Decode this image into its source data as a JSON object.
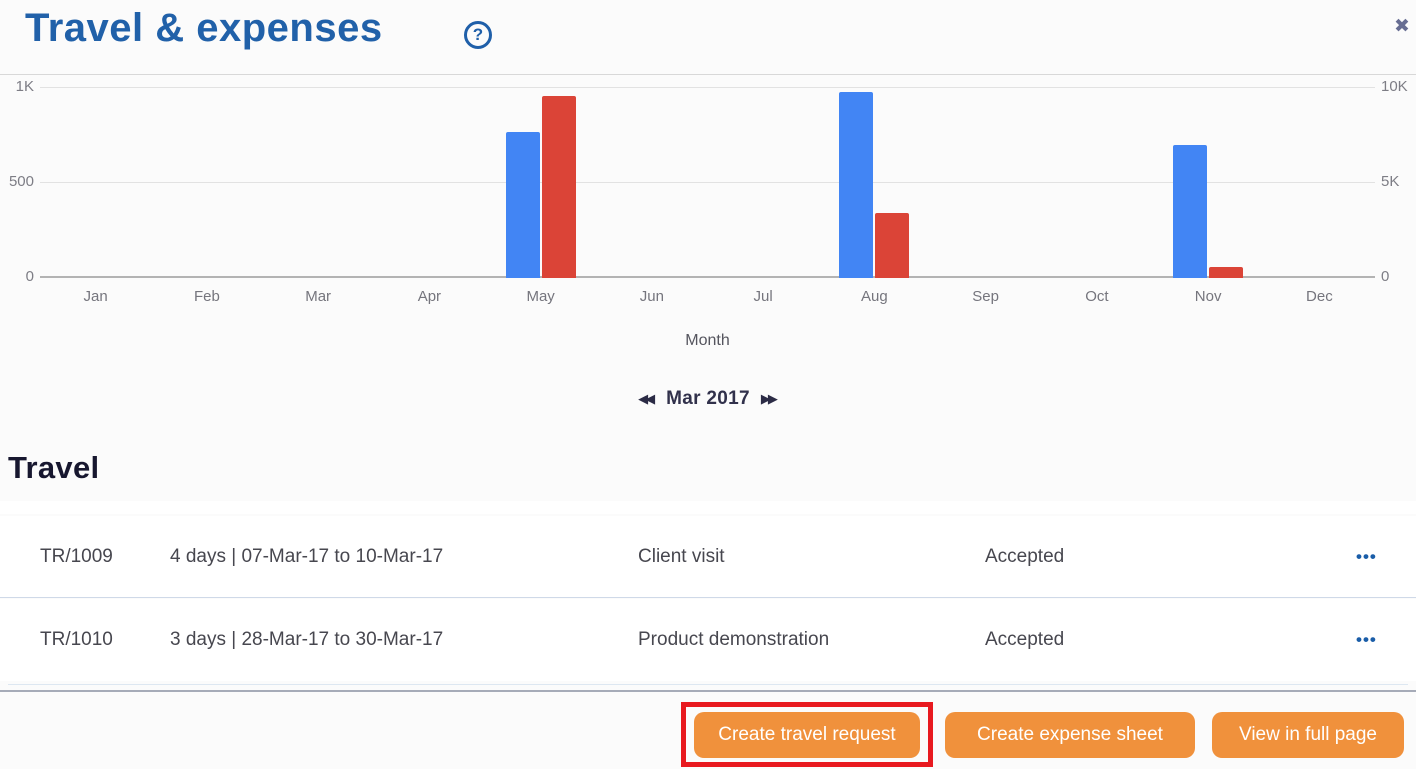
{
  "header": {
    "title": "Travel & expenses",
    "help_icon": "?",
    "close_icon": "✖",
    "title_color": "#2161a9"
  },
  "chart_data": {
    "type": "bar",
    "title": "",
    "xlabel": "Month",
    "categories": [
      "Jan",
      "Feb",
      "Mar",
      "Apr",
      "May",
      "Jun",
      "Jul",
      "Aug",
      "Sep",
      "Oct",
      "Nov",
      "Dec"
    ],
    "series": [
      {
        "name": "blue",
        "axis": "left",
        "color": "#4285F4",
        "values": [
          0,
          0,
          0,
          0,
          770,
          0,
          0,
          980,
          0,
          0,
          700,
          0
        ]
      },
      {
        "name": "red",
        "axis": "right",
        "color": "#DB4437",
        "values": [
          0,
          0,
          0,
          0,
          9600,
          0,
          0,
          3400,
          0,
          0,
          600,
          0
        ]
      }
    ],
    "left_axis": {
      "ticks": [
        "0",
        "500",
        "1K"
      ],
      "max": 1000
    },
    "right_axis": {
      "ticks": [
        "0",
        "5K",
        "10K"
      ],
      "max": 10000
    },
    "grid": true,
    "legend": "none"
  },
  "period_nav": {
    "prev_icon": "◀◀",
    "label": "Mar 2017",
    "next_icon": "▶▶"
  },
  "travel_section": {
    "heading": "Travel",
    "rows": [
      {
        "ref": "TR/1009",
        "duration": "4 days | 07-Mar-17 to 10-Mar-17",
        "purpose": "Client visit",
        "status": "Accepted",
        "menu": "•••"
      },
      {
        "ref": "TR/1010",
        "duration": "3 days | 28-Mar-17 to 30-Mar-17",
        "purpose": "Product demonstration",
        "status": "Accepted",
        "menu": "•••"
      }
    ]
  },
  "footer": {
    "buttons": [
      {
        "label": "Create travel request",
        "highlighted": true
      },
      {
        "label": "Create expense sheet",
        "highlighted": false
      },
      {
        "label": "View in full page",
        "highlighted": false
      }
    ],
    "accent_color": "#f0913c",
    "highlight_color": "#e8191f"
  }
}
